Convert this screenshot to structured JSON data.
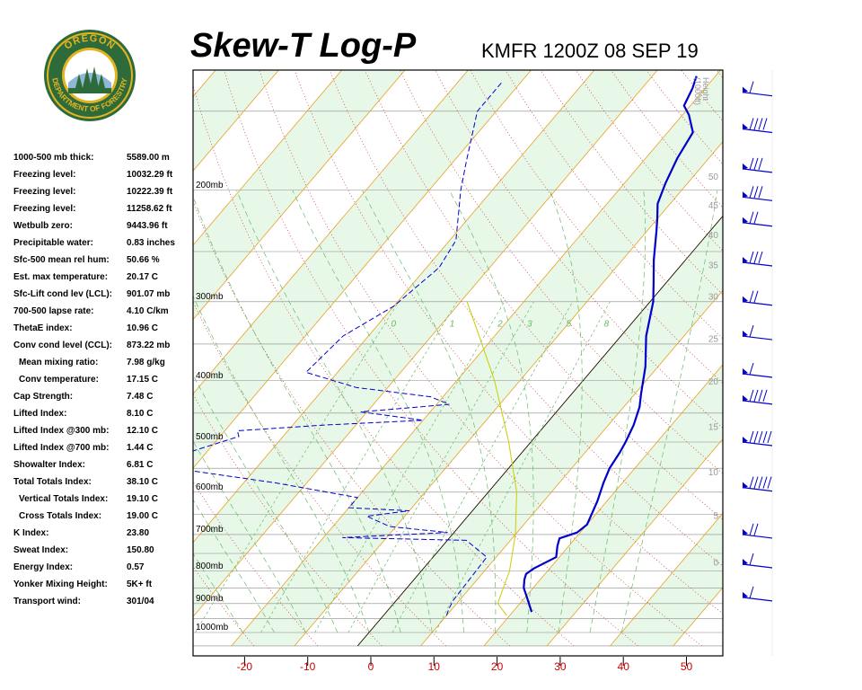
{
  "header": {
    "title": "Skew-T Log-P",
    "station_time": "KMFR 1200Z 08 SEP 19"
  },
  "logo": {
    "top_text": "OREGON",
    "bottom_text": "DEPARTMENT OF FORESTRY",
    "colors": {
      "ring": "#2e6b3a",
      "gold": "#e3b422",
      "inner": "#ffffff"
    }
  },
  "stats": [
    {
      "label": "1000-500 mb thick:",
      "value": "5589.00 m"
    },
    {
      "label": "Freezing level:",
      "value": "10032.29 ft"
    },
    {
      "label": "Freezing level:",
      "value": "10222.39 ft"
    },
    {
      "label": "Freezing level:",
      "value": "11258.62 ft"
    },
    {
      "label": "Wetbulb zero:",
      "value": "9443.96 ft"
    },
    {
      "label": "Precipitable water:",
      "value": "0.83 inches"
    },
    {
      "label": "Sfc-500 mean rel hum:",
      "value": "50.66 %"
    },
    {
      "label": "Est. max temperature:",
      "value": "20.17 C"
    },
    {
      "label": "Sfc-Lift cond lev (LCL):",
      "value": "901.07 mb"
    },
    {
      "label": "700-500 lapse rate:",
      "value": "4.10 C/km"
    },
    {
      "label": "ThetaE index:",
      "value": "10.96 C"
    },
    {
      "label": "Conv cond level (CCL):",
      "value": "873.22 mb"
    },
    {
      "label": "Mean mixing ratio:",
      "value": "7.98 g/kg",
      "indent": true
    },
    {
      "label": "Conv temperature:",
      "value": "17.15 C",
      "indent": true
    },
    {
      "label": "Cap Strength:",
      "value": "7.48 C"
    },
    {
      "label": "Lifted Index:",
      "value": "8.10 C"
    },
    {
      "label": "Lifted Index @300 mb:",
      "value": "12.10 C"
    },
    {
      "label": "Lifted Index @700 mb:",
      "value": "1.44 C"
    },
    {
      "label": "Showalter Index:",
      "value": "6.81 C"
    },
    {
      "label": "Total Totals Index:",
      "value": "38.10 C"
    },
    {
      "label": "Vertical Totals Index:",
      "value": "19.10 C",
      "indent": true
    },
    {
      "label": "Cross Totals Index:",
      "value": "19.00 C",
      "indent": true
    },
    {
      "label": "K Index:",
      "value": "23.80"
    },
    {
      "label": "Sweat Index:",
      "value": "150.80"
    },
    {
      "label": "Energy Index:",
      "value": "0.57"
    },
    {
      "label": "Yonker Mixing Height:",
      "value": "5K+ ft"
    },
    {
      "label": "Transport wind:",
      "value": "301/04"
    }
  ],
  "chart_data": {
    "type": "line",
    "diagram": "skew-t log-p",
    "x_ticks": [
      -20,
      -10,
      0,
      10,
      20,
      30,
      40,
      50
    ],
    "pressure_labels": [
      {
        "p": 200,
        "label": "200mb"
      },
      {
        "p": 300,
        "label": "300mb"
      },
      {
        "p": 400,
        "label": "400mb"
      },
      {
        "p": 500,
        "label": "500mb"
      },
      {
        "p": 600,
        "label": "600mb"
      },
      {
        "p": 700,
        "label": "700mb"
      },
      {
        "p": 800,
        "label": "800mb"
      },
      {
        "p": 900,
        "label": "900mb"
      },
      {
        "p": 1000,
        "label": "1000mb"
      }
    ],
    "height_axis": {
      "label_line1": "Height",
      "label_line2": "(1000ft)",
      "ticks": [
        {
          "label": "50",
          "p": 190
        },
        {
          "label": "45",
          "p": 211
        },
        {
          "label": "40",
          "p": 235
        },
        {
          "label": "35",
          "p": 262
        },
        {
          "label": "30",
          "p": 294
        },
        {
          "label": "25",
          "p": 343
        },
        {
          "label": "20",
          "p": 400
        },
        {
          "label": "15",
          "p": 472
        },
        {
          "label": "10",
          "p": 557
        },
        {
          "label": "5",
          "p": 653
        },
        {
          "label": "0",
          "p": 773
        }
      ]
    },
    "mixing_ratio_labels": [
      "0",
      "1",
      "2",
      "3",
      "5",
      "8"
    ],
    "series": [
      {
        "role": "temperature",
        "color": "#0000cc",
        "style": "solid",
        "points": [
          [
            928,
            23.0
          ],
          [
            875,
            20.0
          ],
          [
            850,
            18.5
          ],
          [
            825,
            17.5
          ],
          [
            808,
            17.0
          ],
          [
            792,
            17.5
          ],
          [
            760,
            19.5
          ],
          [
            730,
            18.2
          ],
          [
            710,
            17.5
          ],
          [
            695,
            19.5
          ],
          [
            675,
            20.0
          ],
          [
            620,
            18.5
          ],
          [
            580,
            17.0
          ],
          [
            550,
            16.0
          ],
          [
            520,
            15.5
          ],
          [
            500,
            15.0
          ],
          [
            470,
            14.0
          ],
          [
            440,
            12.5
          ],
          [
            420,
            11.0
          ],
          [
            380,
            8.0
          ],
          [
            340,
            4.0
          ],
          [
            300,
            0.5
          ],
          [
            280,
            -2.0
          ],
          [
            258,
            -5.0
          ],
          [
            232,
            -8.5
          ],
          [
            222,
            -10.0
          ],
          [
            210,
            -12.0
          ],
          [
            195,
            -13.5
          ],
          [
            178,
            -15.0
          ],
          [
            162,
            -16.0
          ],
          [
            152,
            -19.0
          ],
          [
            147,
            -21.0
          ],
          [
            138,
            -22.0
          ],
          [
            132,
            -23.0
          ]
        ]
      },
      {
        "role": "dewpoint",
        "color": "#0000cc",
        "style": "dashed",
        "points": [
          [
            940,
            10.0
          ],
          [
            920,
            9.5
          ],
          [
            890,
            9.0
          ],
          [
            760,
            8.5
          ],
          [
            715,
            3.0
          ],
          [
            708,
            -17.0
          ],
          [
            702,
            -10.0
          ],
          [
            695,
            -1.0
          ],
          [
            680,
            -11.0
          ],
          [
            655,
            -16.0
          ],
          [
            642,
            -10.0
          ],
          [
            635,
            -20.0
          ],
          [
            612,
            -20.0
          ],
          [
            580,
            -35.0
          ],
          [
            555,
            -50.0
          ],
          [
            520,
            -53.0
          ],
          [
            490,
            -47.0
          ],
          [
            480,
            -48.0
          ],
          [
            470,
            -35.0
          ],
          [
            462,
            -20.0
          ],
          [
            448,
            -31.0
          ],
          [
            436,
            -18.0
          ],
          [
            424,
            -22.0
          ],
          [
            410,
            -35.0
          ],
          [
            388,
            -45.0
          ],
          [
            340,
            -44.0
          ],
          [
            305,
            -40.0
          ],
          [
            265,
            -38.0
          ],
          [
            240,
            -39.0
          ],
          [
            200,
            -45.0
          ],
          [
            180,
            -48.0
          ],
          [
            150,
            -53.0
          ],
          [
            135,
            -53.0
          ]
        ]
      },
      {
        "role": "parcel",
        "color": "#cccc00",
        "style": "solid",
        "points": [
          [
            940,
            19.5
          ],
          [
            900,
            16.5
          ],
          [
            880,
            16.0
          ],
          [
            800,
            14.0
          ],
          [
            700,
            10.0
          ],
          [
            600,
            4.5
          ],
          [
            500,
            -3.5
          ],
          [
            400,
            -14.0
          ],
          [
            330,
            -24.0
          ],
          [
            300,
            -29.0
          ]
        ]
      }
    ],
    "wind_profile": {
      "color": "#0000cc",
      "barbs": [
        {
          "p": 140,
          "count": 1
        },
        {
          "p": 160,
          "count": 4
        },
        {
          "p": 185,
          "count": 3
        },
        {
          "p": 205,
          "count": 3
        },
        {
          "p": 225,
          "count": 2
        },
        {
          "p": 260,
          "count": 3
        },
        {
          "p": 300,
          "count": 2
        },
        {
          "p": 340,
          "count": 1
        },
        {
          "p": 390,
          "count": 1
        },
        {
          "p": 430,
          "count": 4
        },
        {
          "p": 500,
          "count": 5
        },
        {
          "p": 590,
          "count": 5
        },
        {
          "p": 700,
          "count": 2
        },
        {
          "p": 780,
          "count": 1
        },
        {
          "p": 880,
          "count": 1
        }
      ]
    }
  }
}
